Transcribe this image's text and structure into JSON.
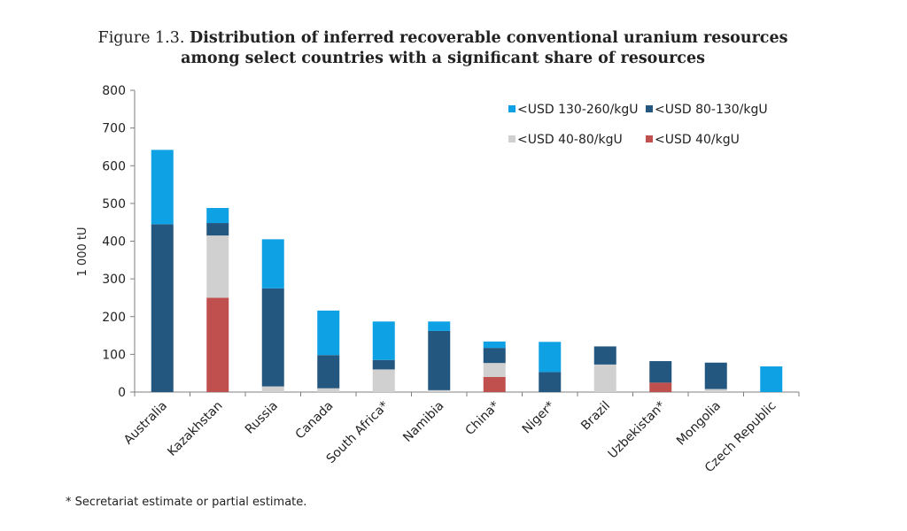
{
  "figure": {
    "label": "Figure 1.3.",
    "title_line1": "Distribution of inferred recoverable conventional uranium resources",
    "title_line2": "among select countries with a significant share of resources"
  },
  "footnote": "* Secretariat estimate or partial estimate.",
  "chart_data": {
    "type": "bar",
    "stacked": true,
    "categories": [
      "Australia",
      "Kazakhstan",
      "Russia",
      "Canada",
      "South Africa*",
      "Namibia",
      "China*",
      "Niger*",
      "Brazil",
      "Uzbekistan*",
      "Mongolia",
      "Czech Republic"
    ],
    "series": [
      {
        "name": "<USD 40/kgU",
        "color": "#c0504d",
        "values": [
          0,
          250,
          0,
          0,
          0,
          0,
          40,
          0,
          0,
          25,
          0,
          0
        ]
      },
      {
        "name": "<USD 40-80/kgU",
        "color": "#d0d0d0",
        "values": [
          0,
          165,
          15,
          10,
          60,
          5,
          37,
          0,
          73,
          0,
          8,
          0
        ]
      },
      {
        "name": "<USD 80-130/kgU",
        "color": "#23577f",
        "values": [
          445,
          33,
          260,
          88,
          25,
          157,
          40,
          53,
          48,
          57,
          70,
          0
        ]
      },
      {
        "name": "<USD 130-260/kgU",
        "color": "#0ea1e3",
        "values": [
          197,
          40,
          130,
          118,
          102,
          25,
          17,
          80,
          0,
          0,
          0,
          68
        ]
      }
    ],
    "ylabel": "1 000 tU",
    "ylim": [
      0,
      800
    ],
    "yticks": [
      0,
      100,
      200,
      300,
      400,
      500,
      600,
      700,
      800
    ],
    "grid": false,
    "legend": {
      "placement": "top-right",
      "order": [
        "<USD 130-260/kgU",
        "<USD 80-130/kgU",
        "<USD 40-80/kgU",
        "<USD 40/kgU"
      ]
    }
  }
}
